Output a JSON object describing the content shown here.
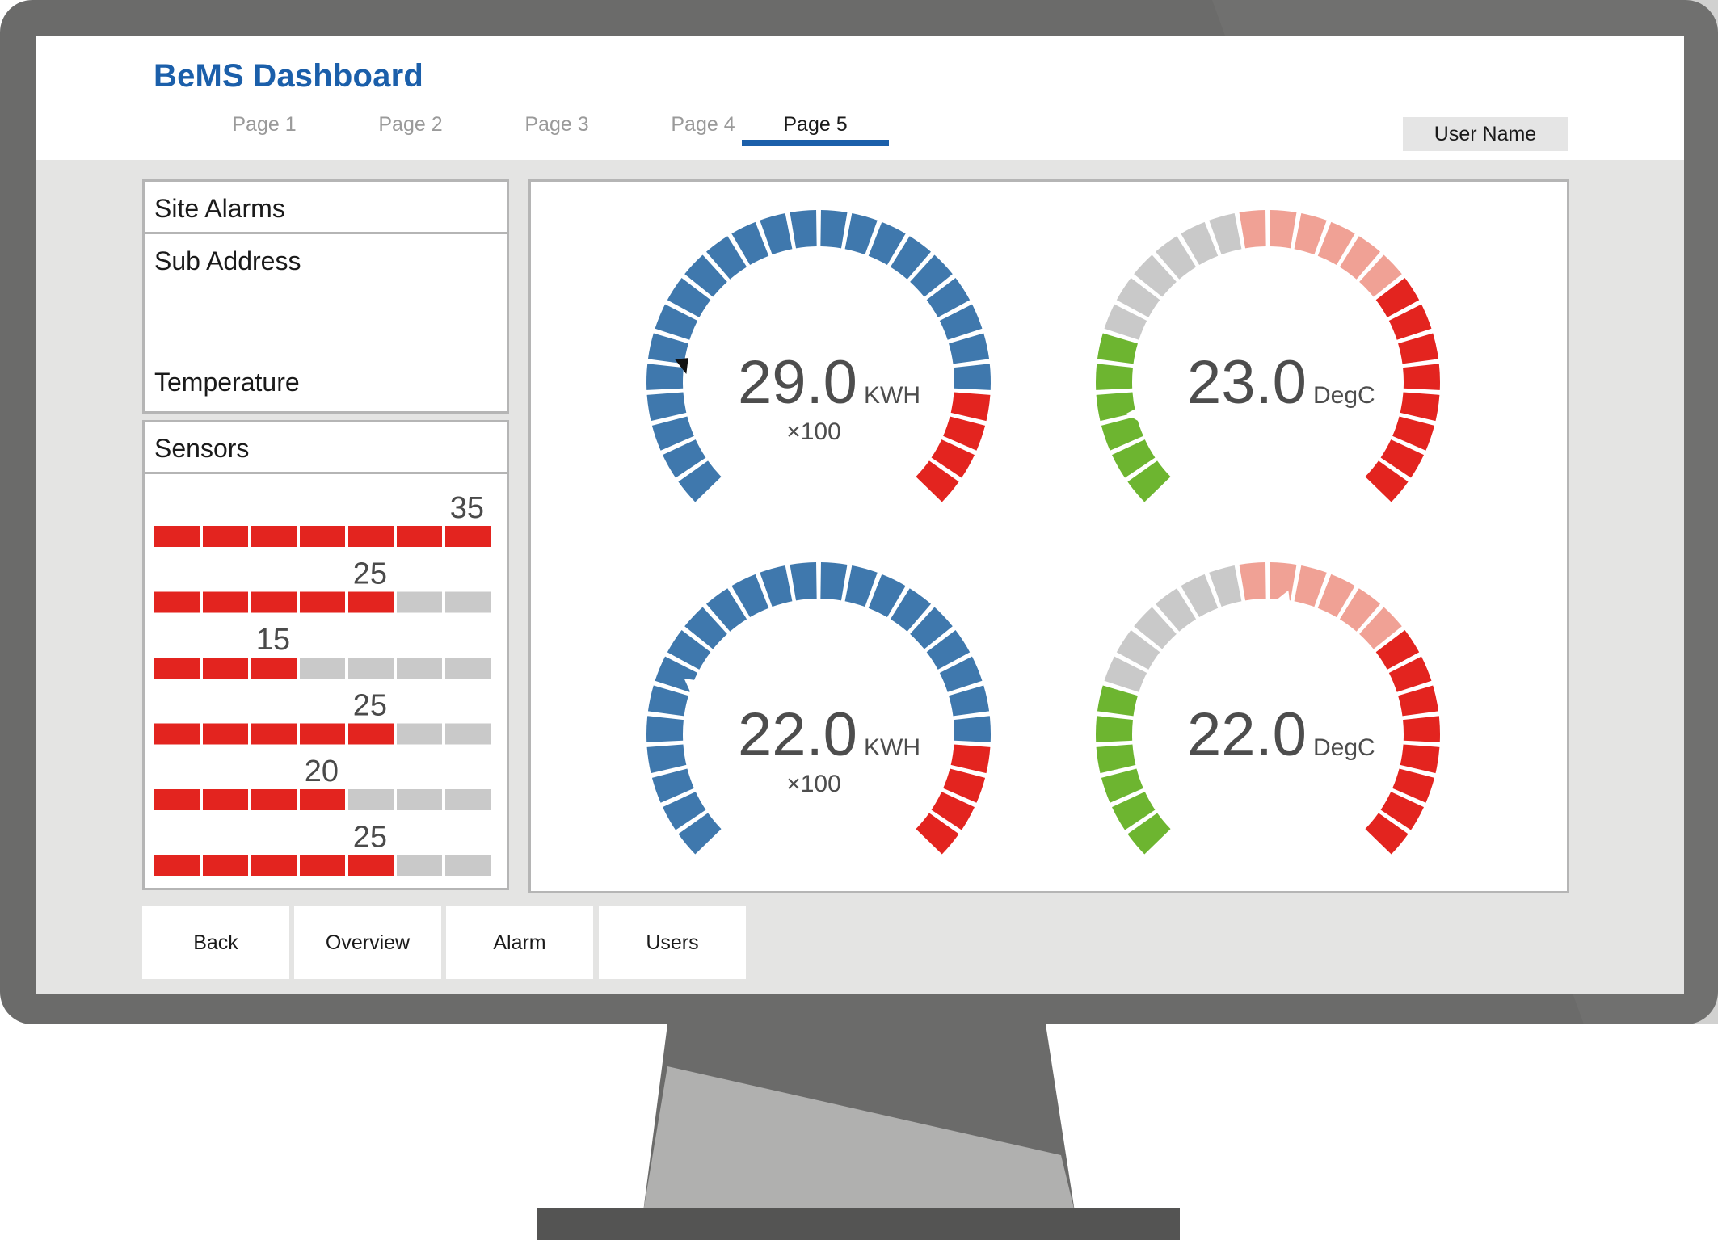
{
  "header": {
    "title": "BeMS Dashboard",
    "tabs": [
      {
        "label": "Page 1",
        "active": false
      },
      {
        "label": "Page 2",
        "active": false
      },
      {
        "label": "Page 3",
        "active": false
      },
      {
        "label": "Page 4",
        "active": false
      },
      {
        "label": "Page 5",
        "active": true
      }
    ],
    "user_label": "User Name"
  },
  "site_alarms": {
    "title": "Site Alarms",
    "fields": [
      "Sub Address",
      "Temperature"
    ]
  },
  "sensors": {
    "title": "Sensors",
    "segments_per_bar": 7,
    "bars": [
      {
        "value": "35",
        "filled": 7
      },
      {
        "value": "25",
        "filled": 5
      },
      {
        "value": "15",
        "filled": 3
      },
      {
        "value": "25",
        "filled": 5
      },
      {
        "value": "20",
        "filled": 4
      },
      {
        "value": "25",
        "filled": 5
      }
    ]
  },
  "gauges": [
    {
      "value": "29.0",
      "unit": "KWH",
      "multiplier": "×100",
      "kind": "energy",
      "pointer_level": 0.2
    },
    {
      "value": "23.0",
      "unit": "DegC",
      "multiplier": "",
      "kind": "temperature",
      "pointer_level": 0.12
    },
    {
      "value": "22.0",
      "unit": "KWH",
      "multiplier": "×100",
      "kind": "energy",
      "pointer_level": 0.25
    },
    {
      "value": "22.0",
      "unit": "DegC",
      "multiplier": "",
      "kind": "temperature",
      "pointer_level": 0.53
    }
  ],
  "footer": {
    "buttons": [
      "Back",
      "Overview",
      "Alarm",
      "Users"
    ]
  },
  "colors": {
    "brand": "#1b5faa",
    "alert_red": "#e3241f",
    "inactive_gray": "#c9c9c9",
    "energy_blue": "#3f78ad",
    "temp_green": "#6db530",
    "temp_pink": "#f0a195",
    "bezel": "#6b6b6a"
  }
}
